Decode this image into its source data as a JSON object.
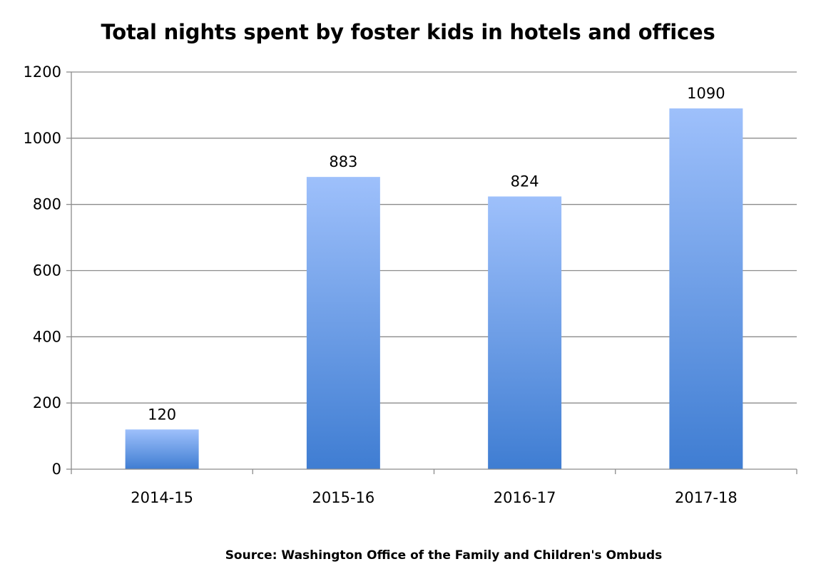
{
  "chart_data": {
    "type": "bar",
    "title": "Total nights spent by foster kids in hotels and offices",
    "categories": [
      "2014-15",
      "2015-16",
      "2016-17",
      "2017-18"
    ],
    "values": [
      120,
      883,
      824,
      1090
    ],
    "data_labels": [
      "120",
      "883",
      "824",
      "1090"
    ],
    "xlabel": "",
    "ylabel": "",
    "ylim": [
      0,
      1200
    ],
    "y_ticks": [
      0,
      200,
      400,
      600,
      800,
      1000,
      1200
    ],
    "y_tick_labels": [
      "0",
      "200",
      "400",
      "600",
      "800",
      "1000",
      "1200"
    ],
    "grid": true,
    "legend": "none",
    "bar_color_top": "#9ec0fb",
    "bar_color_bottom": "#3f7dd2",
    "gridline_color": "#8c8c8c"
  },
  "source_note": "Source: Washington Office of the Family and Children's Ombuds"
}
